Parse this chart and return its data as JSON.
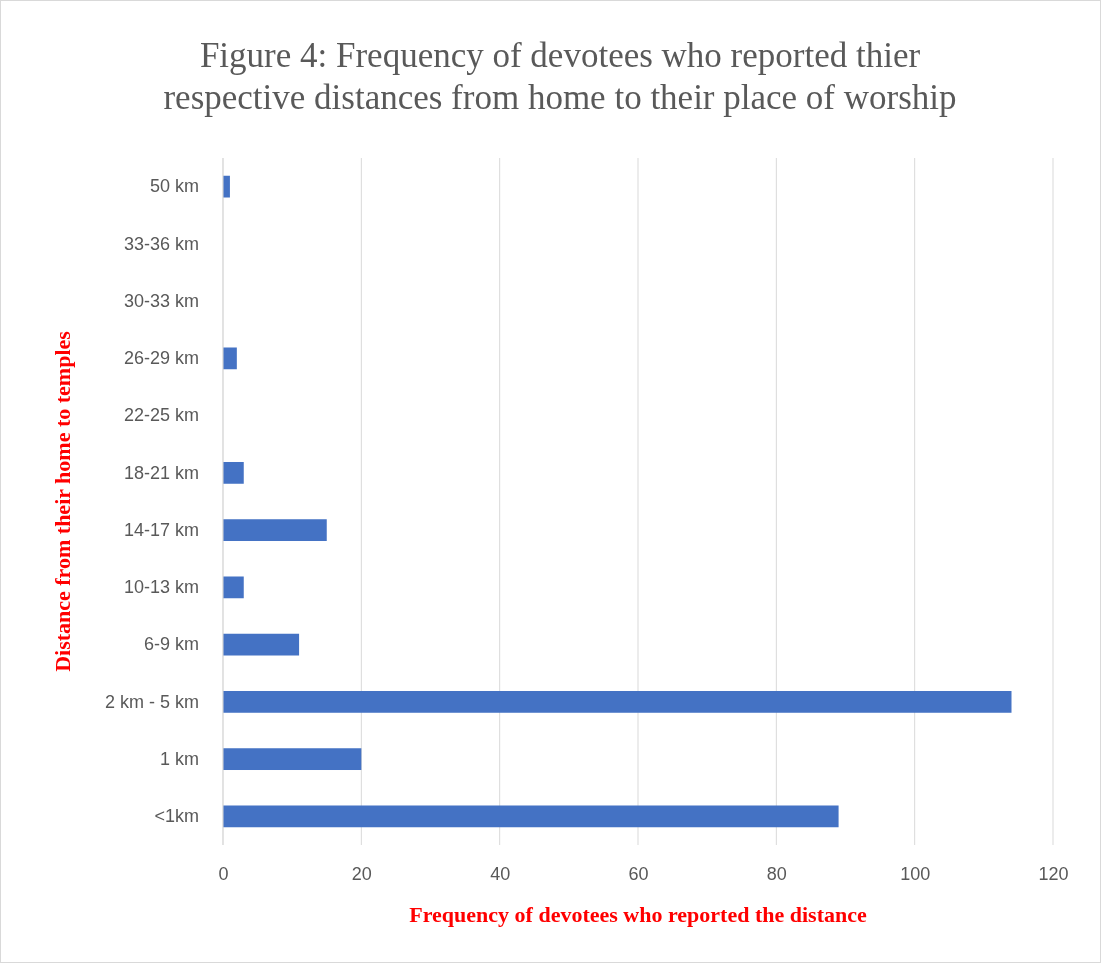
{
  "chart_data": {
    "type": "bar",
    "orientation": "horizontal",
    "title": "Figure 4: Frequency of devotees who reported thier respective distances from home to their place of worship",
    "xlabel": "Frequency of devotees who reported the distance",
    "ylabel": "Distance from their home to temples",
    "categories": [
      "50 km",
      "33-36 km",
      "30-33 km",
      "26-29 km",
      "22-25 km",
      "18-21 km",
      "14-17 km",
      "10-13 km",
      "6-9 km",
      "2 km - 5 km",
      "1 km",
      "<1km"
    ],
    "values": [
      1,
      0,
      0,
      2,
      0,
      3,
      15,
      3,
      11,
      114,
      20,
      89
    ],
    "color": "#4472c4",
    "xlim": [
      0,
      120
    ],
    "xticks": [
      0,
      20,
      40,
      60,
      80,
      100,
      120
    ],
    "grid": "x"
  }
}
